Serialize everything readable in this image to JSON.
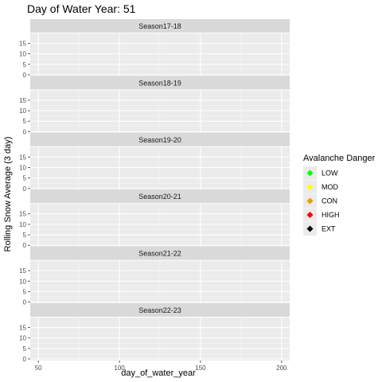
{
  "chart_data": {
    "type": "scatter",
    "title": "Day of Water Year: 51",
    "xlabel": "day_of_water_year",
    "ylabel": "Rolling Snow Average (3 day)",
    "xlim": [
      45,
      205
    ],
    "ylim": [
      0,
      19
    ],
    "x_ticks": [
      50,
      100,
      150,
      200
    ],
    "x_tick_labels": [
      "50",
      "100",
      "150",
      "200"
    ],
    "y_ticks": [
      0,
      5,
      10,
      15
    ],
    "y_tick_labels": [
      "0",
      "5",
      "10",
      "15"
    ],
    "grid": true,
    "facets": [
      "Season17-18",
      "Season18-19",
      "Season19-20",
      "Season20-21",
      "Season21-22",
      "Season22-23"
    ],
    "series": [],
    "legend": {
      "title": "Avalanche Danger",
      "placement": "right",
      "items": [
        {
          "label": "LOW",
          "color": "#00ff00"
        },
        {
          "label": "MOD",
          "color": "#ffff00"
        },
        {
          "label": "CON",
          "color": "#e69f00"
        },
        {
          "label": "HIGH",
          "color": "#ff0000"
        },
        {
          "label": "EXT",
          "color": "#000000"
        }
      ]
    }
  },
  "colors": {
    "panel_background": "#ebebeb",
    "strip_background": "#d9d9d9",
    "grid_major": "#ffffff",
    "grid_minor": "#f5f5f5",
    "legend_key_background": "#ebebeb"
  }
}
